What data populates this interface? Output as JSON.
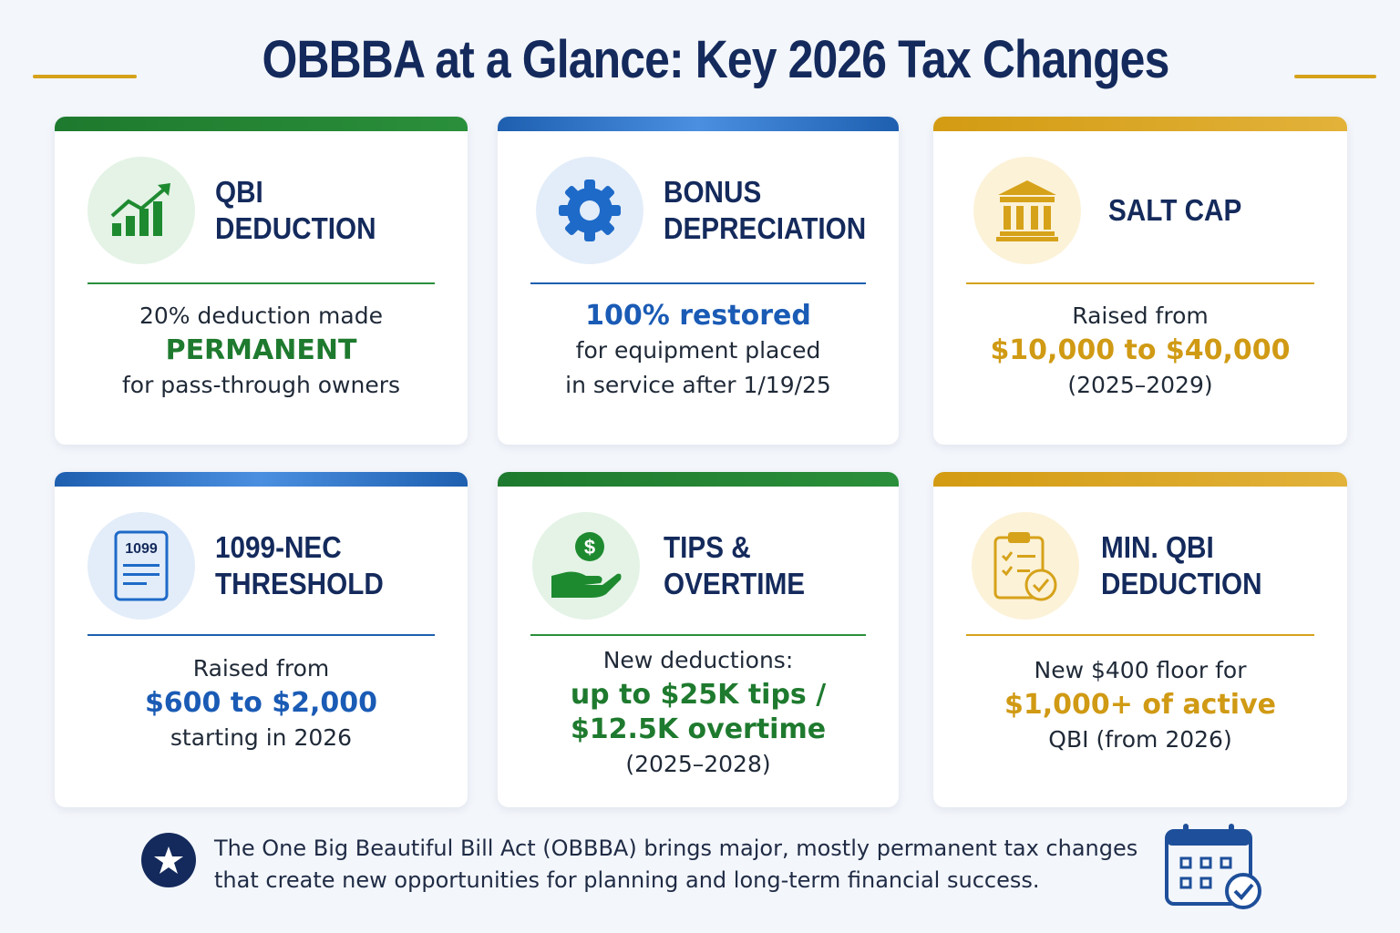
{
  "title": "OBBBA at a Glance: Key 2026 Tax Changes",
  "colors": {
    "navy": "#142a5c",
    "green": "#1e7a2e",
    "blue": "#1a5bb5",
    "gold": "#d09a14"
  },
  "cards": [
    {
      "title": "QBI DEDUCTION",
      "icon": "growth-chart-icon",
      "accent": "green",
      "lines": [
        "20% deduction made",
        "PERMANENT",
        "for pass-through owners"
      ]
    },
    {
      "title": "BONUS\nDEPRECIATION",
      "icon": "gear-icon",
      "accent": "blue",
      "lines": [
        "100% restored",
        "for equipment placed",
        "in service after 1/19/25"
      ]
    },
    {
      "title": "SALT CAP",
      "icon": "government-building-icon",
      "accent": "gold",
      "lines": [
        "Raised from",
        "$10,000 to $40,000",
        "(2025–2029)"
      ]
    },
    {
      "title": "1099-NEC\nTHRESHOLD",
      "icon": "tax-form-1099-icon",
      "icon_label": "1099",
      "accent": "blue",
      "lines": [
        "Raised from",
        "$600 to $2,000",
        "starting in 2026"
      ]
    },
    {
      "title": "TIPS &\nOVERTIME",
      "icon": "hand-dollar-icon",
      "accent": "green",
      "lines": [
        "New deductions:",
        "up to $25K tips /",
        "$12.5K overtime",
        "(2025–2028)"
      ]
    },
    {
      "title": "MIN. QBI\nDEDUCTION",
      "icon": "clipboard-check-icon",
      "accent": "gold",
      "lines": [
        "New $400 floor for",
        "$1,000+ of active",
        "QBI (from 2026)"
      ]
    }
  ],
  "footer": {
    "text": "The One Big Beautiful Bill Act (OBBBA) brings major, mostly permanent tax changes that create new opportunities for planning and long-term financial success.",
    "icons": [
      "star-icon",
      "calendar-check-icon"
    ]
  }
}
